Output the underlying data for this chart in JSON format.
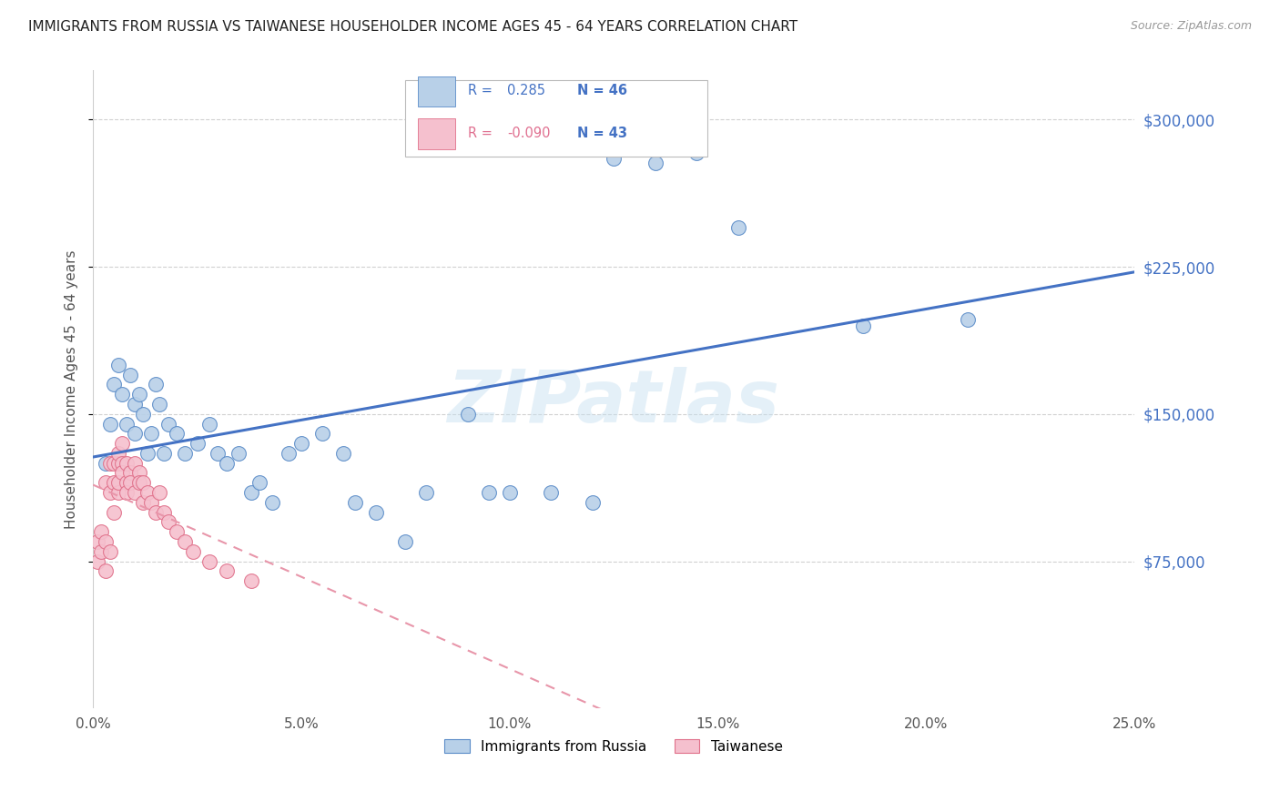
{
  "title": "IMMIGRANTS FROM RUSSIA VS TAIWANESE HOUSEHOLDER INCOME AGES 45 - 64 YEARS CORRELATION CHART",
  "source": "Source: ZipAtlas.com",
  "ylabel": "Householder Income Ages 45 - 64 years",
  "xlim": [
    0.0,
    0.25
  ],
  "ylim": [
    0,
    325000
  ],
  "xtick_labels": [
    "0.0%",
    "5.0%",
    "10.0%",
    "15.0%",
    "20.0%",
    "25.0%"
  ],
  "xtick_values": [
    0.0,
    0.05,
    0.1,
    0.15,
    0.2,
    0.25
  ],
  "ytick_labels": [
    "$75,000",
    "$150,000",
    "$225,000",
    "$300,000"
  ],
  "ytick_values": [
    75000,
    150000,
    225000,
    300000
  ],
  "r_russia": 0.285,
  "n_russia": 46,
  "r_taiwanese": -0.09,
  "n_taiwanese": 43,
  "legend_label_russia": "Immigrants from Russia",
  "legend_label_taiwanese": "Taiwanese",
  "color_russia_fill": "#b8d0e8",
  "color_russia_edge": "#5b8cc8",
  "color_taiwanese_fill": "#f5c0ce",
  "color_taiwanese_edge": "#e0708a",
  "color_russia_line": "#4472c4",
  "color_taiwanese_line": "#e896aa",
  "watermark": "ZIPatlas",
  "russia_x": [
    0.003,
    0.004,
    0.005,
    0.006,
    0.007,
    0.008,
    0.009,
    0.01,
    0.01,
    0.011,
    0.012,
    0.013,
    0.014,
    0.015,
    0.016,
    0.017,
    0.018,
    0.02,
    0.022,
    0.025,
    0.028,
    0.03,
    0.032,
    0.035,
    0.038,
    0.04,
    0.043,
    0.047,
    0.05,
    0.055,
    0.06,
    0.063,
    0.068,
    0.075,
    0.08,
    0.09,
    0.095,
    0.1,
    0.11,
    0.12,
    0.125,
    0.135,
    0.145,
    0.155,
    0.185,
    0.21
  ],
  "russia_y": [
    125000,
    145000,
    165000,
    175000,
    160000,
    145000,
    170000,
    155000,
    140000,
    160000,
    150000,
    130000,
    140000,
    165000,
    155000,
    130000,
    145000,
    140000,
    130000,
    135000,
    145000,
    130000,
    125000,
    130000,
    110000,
    115000,
    105000,
    130000,
    135000,
    140000,
    130000,
    105000,
    100000,
    85000,
    110000,
    150000,
    110000,
    110000,
    110000,
    105000,
    280000,
    278000,
    283000,
    245000,
    195000,
    198000
  ],
  "taiwanese_x": [
    0.001,
    0.001,
    0.002,
    0.002,
    0.003,
    0.003,
    0.003,
    0.004,
    0.004,
    0.004,
    0.005,
    0.005,
    0.005,
    0.006,
    0.006,
    0.006,
    0.006,
    0.007,
    0.007,
    0.007,
    0.008,
    0.008,
    0.008,
    0.009,
    0.009,
    0.01,
    0.01,
    0.011,
    0.011,
    0.012,
    0.012,
    0.013,
    0.014,
    0.015,
    0.016,
    0.017,
    0.018,
    0.02,
    0.022,
    0.024,
    0.028,
    0.032,
    0.038
  ],
  "taiwanese_y": [
    85000,
    75000,
    90000,
    80000,
    85000,
    115000,
    70000,
    80000,
    125000,
    110000,
    100000,
    125000,
    115000,
    110000,
    125000,
    115000,
    130000,
    125000,
    120000,
    135000,
    115000,
    125000,
    110000,
    120000,
    115000,
    125000,
    110000,
    120000,
    115000,
    115000,
    105000,
    110000,
    105000,
    100000,
    110000,
    100000,
    95000,
    90000,
    85000,
    80000,
    75000,
    70000,
    65000
  ]
}
